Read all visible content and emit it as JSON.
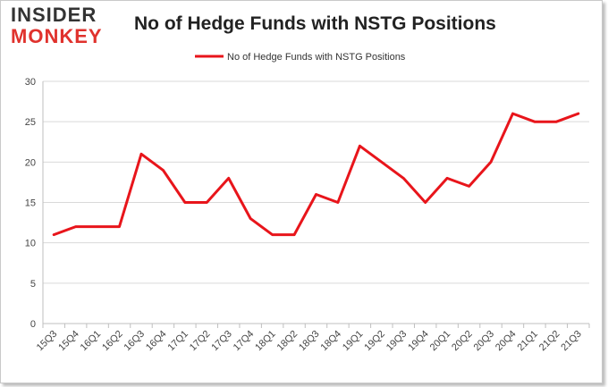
{
  "logo": {
    "line1": "INSIDER",
    "line2": "MONKEY"
  },
  "chart_data": {
    "type": "line",
    "title": "No of Hedge Funds with NSTG Positions",
    "xlabel": "",
    "ylabel": "",
    "categories": [
      "15Q3",
      "15Q4",
      "16Q1",
      "16Q2",
      "16Q3",
      "16Q4",
      "17Q1",
      "17Q2",
      "17Q3",
      "17Q4",
      "18Q1",
      "18Q2",
      "18Q3",
      "18Q4",
      "19Q1",
      "19Q2",
      "19Q3",
      "19Q4",
      "20Q1",
      "20Q2",
      "20Q3",
      "20Q4",
      "21Q1",
      "21Q2",
      "21Q3"
    ],
    "series": [
      {
        "name": "No of Hedge Funds with NSTG  Positions",
        "values": [
          11,
          12,
          12,
          12,
          21,
          19,
          15,
          15,
          18,
          13,
          11,
          11,
          16,
          15,
          22,
          20,
          18,
          15,
          18,
          17,
          20,
          26,
          25,
          25,
          26
        ],
        "color": "#e8151b"
      }
    ],
    "ylim": [
      0,
      30
    ],
    "yticks": [
      0,
      5,
      10,
      15,
      20,
      25,
      30
    ],
    "grid": true,
    "legend_position": "top-center"
  }
}
